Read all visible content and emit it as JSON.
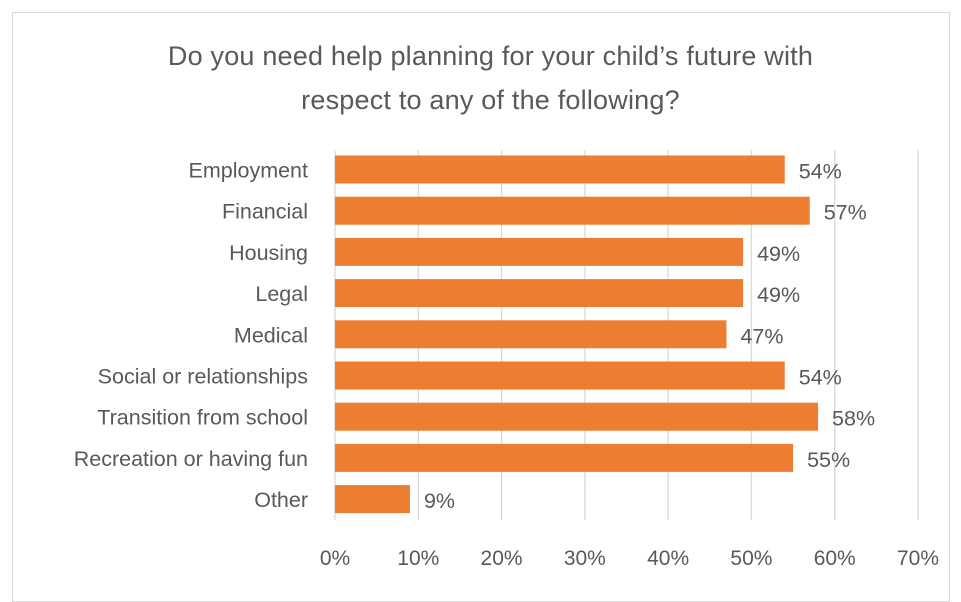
{
  "chart_data": {
    "type": "bar",
    "orientation": "horizontal",
    "title_lines": [
      "Do you need help planning for your child’s future with",
      "respect to any of the following?"
    ],
    "categories": [
      "Employment",
      "Financial",
      "Housing",
      "Legal",
      "Medical",
      "Social or relationships",
      "Transition from school",
      "Recreation or having fun",
      "Other"
    ],
    "values": [
      54,
      57,
      49,
      49,
      47,
      54,
      58,
      55,
      9
    ],
    "data_labels": [
      "54%",
      "57%",
      "49%",
      "49%",
      "47%",
      "54%",
      "58%",
      "55%",
      "9%"
    ],
    "xlim": [
      0,
      70
    ],
    "x_ticks": [
      "0%",
      "10%",
      "20%",
      "30%",
      "40%",
      "50%",
      "60%",
      "70%"
    ],
    "grid": true,
    "bar_color": "#ED7D31",
    "grid_color": "#D9D9D9",
    "text_color": "#595959"
  }
}
